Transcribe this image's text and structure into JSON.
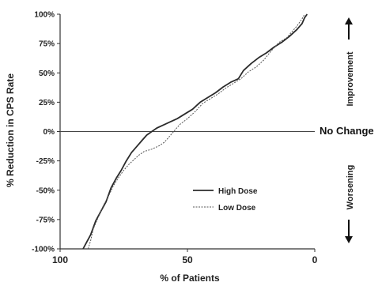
{
  "chart_data": {
    "type": "line",
    "xlabel": "% of Patients",
    "ylabel": "% Reduction in CPS Rate",
    "xlim": [
      100,
      0
    ],
    "ylim": [
      -100,
      100
    ],
    "x_ticks": [
      "100",
      "50",
      "0"
    ],
    "y_ticks": [
      "100%",
      "75%",
      "50%",
      "25%",
      "0%",
      "-25%",
      "-50%",
      "-75%",
      "-100%"
    ],
    "reference_line": {
      "y": 0,
      "label": "No Change"
    },
    "side_labels": {
      "top": "Improvement",
      "bottom": "Worsening"
    },
    "legend_position": "lower-right",
    "grid": false,
    "series": [
      {
        "name": "High Dose",
        "style": "solid",
        "color": "#2b2b2b",
        "points": [
          [
            91,
            -100
          ],
          [
            90,
            -96
          ],
          [
            88,
            -88
          ],
          [
            86,
            -76
          ],
          [
            84,
            -68
          ],
          [
            82,
            -60
          ],
          [
            80,
            -48
          ],
          [
            78,
            -40
          ],
          [
            76,
            -33
          ],
          [
            74,
            -25
          ],
          [
            72,
            -18
          ],
          [
            70,
            -13
          ],
          [
            68,
            -8
          ],
          [
            66,
            -3
          ],
          [
            64,
            0
          ],
          [
            62,
            3
          ],
          [
            60,
            5
          ],
          [
            57,
            8
          ],
          [
            54,
            11
          ],
          [
            51,
            15
          ],
          [
            48,
            19
          ],
          [
            45,
            25
          ],
          [
            42,
            29
          ],
          [
            39,
            33
          ],
          [
            36,
            38
          ],
          [
            33,
            42
          ],
          [
            30,
            45
          ],
          [
            28,
            52
          ],
          [
            25,
            58
          ],
          [
            22,
            63
          ],
          [
            19,
            67
          ],
          [
            16,
            72
          ],
          [
            13,
            76
          ],
          [
            10,
            81
          ],
          [
            7,
            87
          ],
          [
            5,
            92
          ],
          [
            4,
            97
          ],
          [
            3,
            100
          ]
        ]
      },
      {
        "name": "Low Dose",
        "style": "dotted",
        "color": "#555555",
        "points": [
          [
            89,
            -100
          ],
          [
            88,
            -93
          ],
          [
            87,
            -83
          ],
          [
            85,
            -73
          ],
          [
            83,
            -63
          ],
          [
            81,
            -55
          ],
          [
            79,
            -46
          ],
          [
            77,
            -39
          ],
          [
            75,
            -33
          ],
          [
            73,
            -28
          ],
          [
            71,
            -24
          ],
          [
            69,
            -20
          ],
          [
            67,
            -17
          ],
          [
            64,
            -15
          ],
          [
            61,
            -12
          ],
          [
            59,
            -9
          ],
          [
            57,
            -4
          ],
          [
            55,
            1
          ],
          [
            53,
            6
          ],
          [
            50,
            11
          ],
          [
            47,
            17
          ],
          [
            44,
            24
          ],
          [
            41,
            28
          ],
          [
            38,
            32
          ],
          [
            35,
            37
          ],
          [
            32,
            41
          ],
          [
            29,
            45
          ],
          [
            26,
            51
          ],
          [
            23,
            55
          ],
          [
            20,
            61
          ],
          [
            17,
            69
          ],
          [
            14,
            76
          ],
          [
            11,
            80
          ],
          [
            9,
            85
          ],
          [
            7,
            90
          ],
          [
            5,
            96
          ],
          [
            4,
            100
          ]
        ]
      }
    ]
  }
}
